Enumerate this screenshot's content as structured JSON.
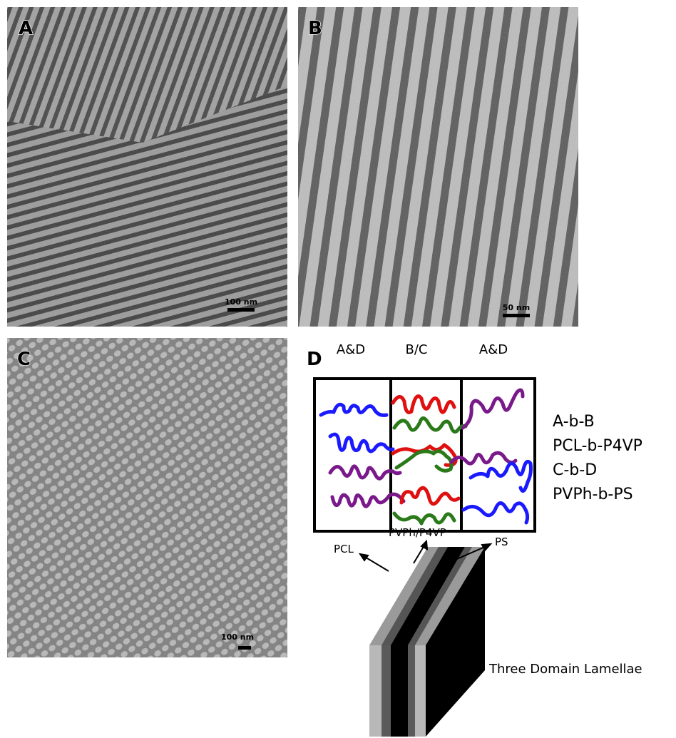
{
  "panels": {
    "a": {
      "label": "A",
      "scale_bar": "100 nm"
    },
    "b": {
      "label": "B",
      "scale_bar": "50 nm"
    },
    "c": {
      "label": "C",
      "scale_bar": "100 nm"
    },
    "d": {
      "label": "D"
    }
  },
  "diagram": {
    "columns": [
      "A&D",
      "B/C",
      "A&D"
    ],
    "legend": [
      "A-b-B",
      "PCL-b-P4VP",
      "C-b-D",
      "PVPh-b-PS"
    ],
    "lamellae": {
      "labels": [
        "PCL",
        "PVPh/P4VP",
        "PS"
      ],
      "caption": "Three Domain Lamellae"
    }
  }
}
